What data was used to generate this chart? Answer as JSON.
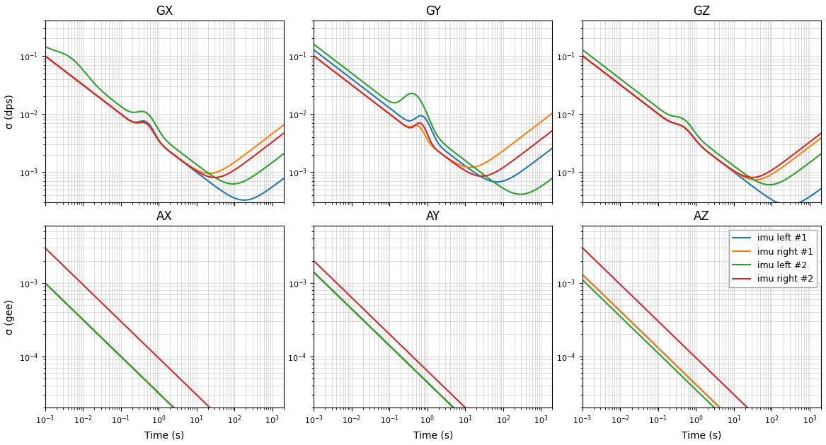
{
  "subplot_titles": [
    "GX",
    "GY",
    "GZ",
    "AX",
    "AY",
    "AZ"
  ],
  "gyro_ylabel": "σ (dps)",
  "accel_ylabel": "σ (gee)",
  "xlabel": "Time (s)",
  "legend_labels": [
    "imu left #1",
    "imu right #1",
    "imu left #2",
    "imu right #2"
  ],
  "colors": [
    "#1f77b4",
    "#ff7f0e",
    "#2ca02c",
    "#d62728"
  ],
  "line_width": 1.5,
  "figsize": [
    11.67,
    6.29
  ],
  "dpi": 100,
  "xmin": 0.001,
  "xmax": 2000.0,
  "gyro_ylim": [
    0.0003,
    0.4
  ],
  "accel_ylim": [
    2e-05,
    0.006
  ]
}
